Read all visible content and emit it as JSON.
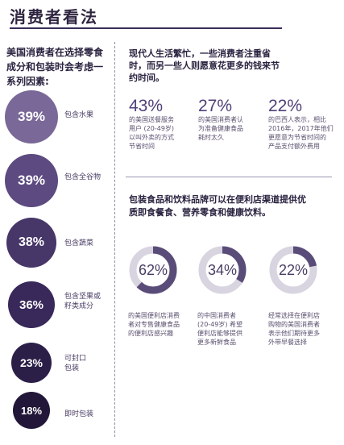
{
  "page": {
    "title": "消费者看法",
    "left_intro": "美国消费者在选择零食成分和包装时会考虑一系列因素:",
    "right_intro": "现代人生活繁忙，一些消费者注重省时，而另一些人则愿意花更多的钱来节约时间。",
    "section2_intro": "包装食品和饮料品牌可以在便利店渠道提供优质即食餐食、营养零食和健康饮料。"
  },
  "colors": {
    "circle_1": "#7a6898",
    "circle_2": "#5c4a80",
    "circle_3": "#473668",
    "circle_4": "#39285a",
    "circle_5": "#2b1f48",
    "circle_6": "#221738",
    "donut_fill": "#5a4c78",
    "donut_track": "#d8d4e0"
  },
  "chart_data": [
    {
      "type": "bar",
      "categories": [
        "包含水果",
        "包含全谷物",
        "包含蔬菜",
        "包含坚果或籽类成分",
        "可封口包装",
        "即时包装"
      ],
      "values": [
        39,
        39,
        38,
        36,
        23,
        18
      ],
      "value_labels": [
        "39%",
        "39%",
        "38%",
        "36%",
        "23%",
        "18%"
      ],
      "label_lines": [
        [
          "包含水果"
        ],
        [
          "包含全谷物"
        ],
        [
          "包含蔬菜"
        ],
        [
          "包含坚果或",
          "籽类成分"
        ],
        [
          "可封口",
          "包装"
        ],
        [
          "即时包装"
        ]
      ]
    },
    {
      "type": "table",
      "stats": [
        {
          "value": "43%",
          "lines": [
            "的美国送餐服务",
            "用户 (20-49岁)",
            "以叫外卖的方式",
            "节省时间"
          ]
        },
        {
          "value": "27%",
          "lines": [
            "的美国消费者认",
            "为准备健康食品",
            "耗时太久"
          ]
        },
        {
          "value": "22%",
          "lines": [
            "的巴西人表示，相比",
            "2016年，2017年他们",
            "更愿意为节省时间的",
            "产品支付额外费用"
          ]
        }
      ]
    },
    {
      "type": "pie",
      "values": [
        62,
        34,
        22
      ],
      "value_labels": [
        "62%",
        "34%",
        "22%"
      ],
      "texts": [
        [
          "的美国便利店消费",
          "者对专售健康食品",
          "的便利店感兴趣"
        ],
        [
          "的中国消费者",
          "(20-49岁) 希望",
          "便利店能够提供",
          "更多新鲜食品"
        ],
        [
          "经常选择在便利店",
          "购物的美国消费者",
          "表示他们期待更多",
          "外带早餐选择"
        ]
      ]
    }
  ]
}
